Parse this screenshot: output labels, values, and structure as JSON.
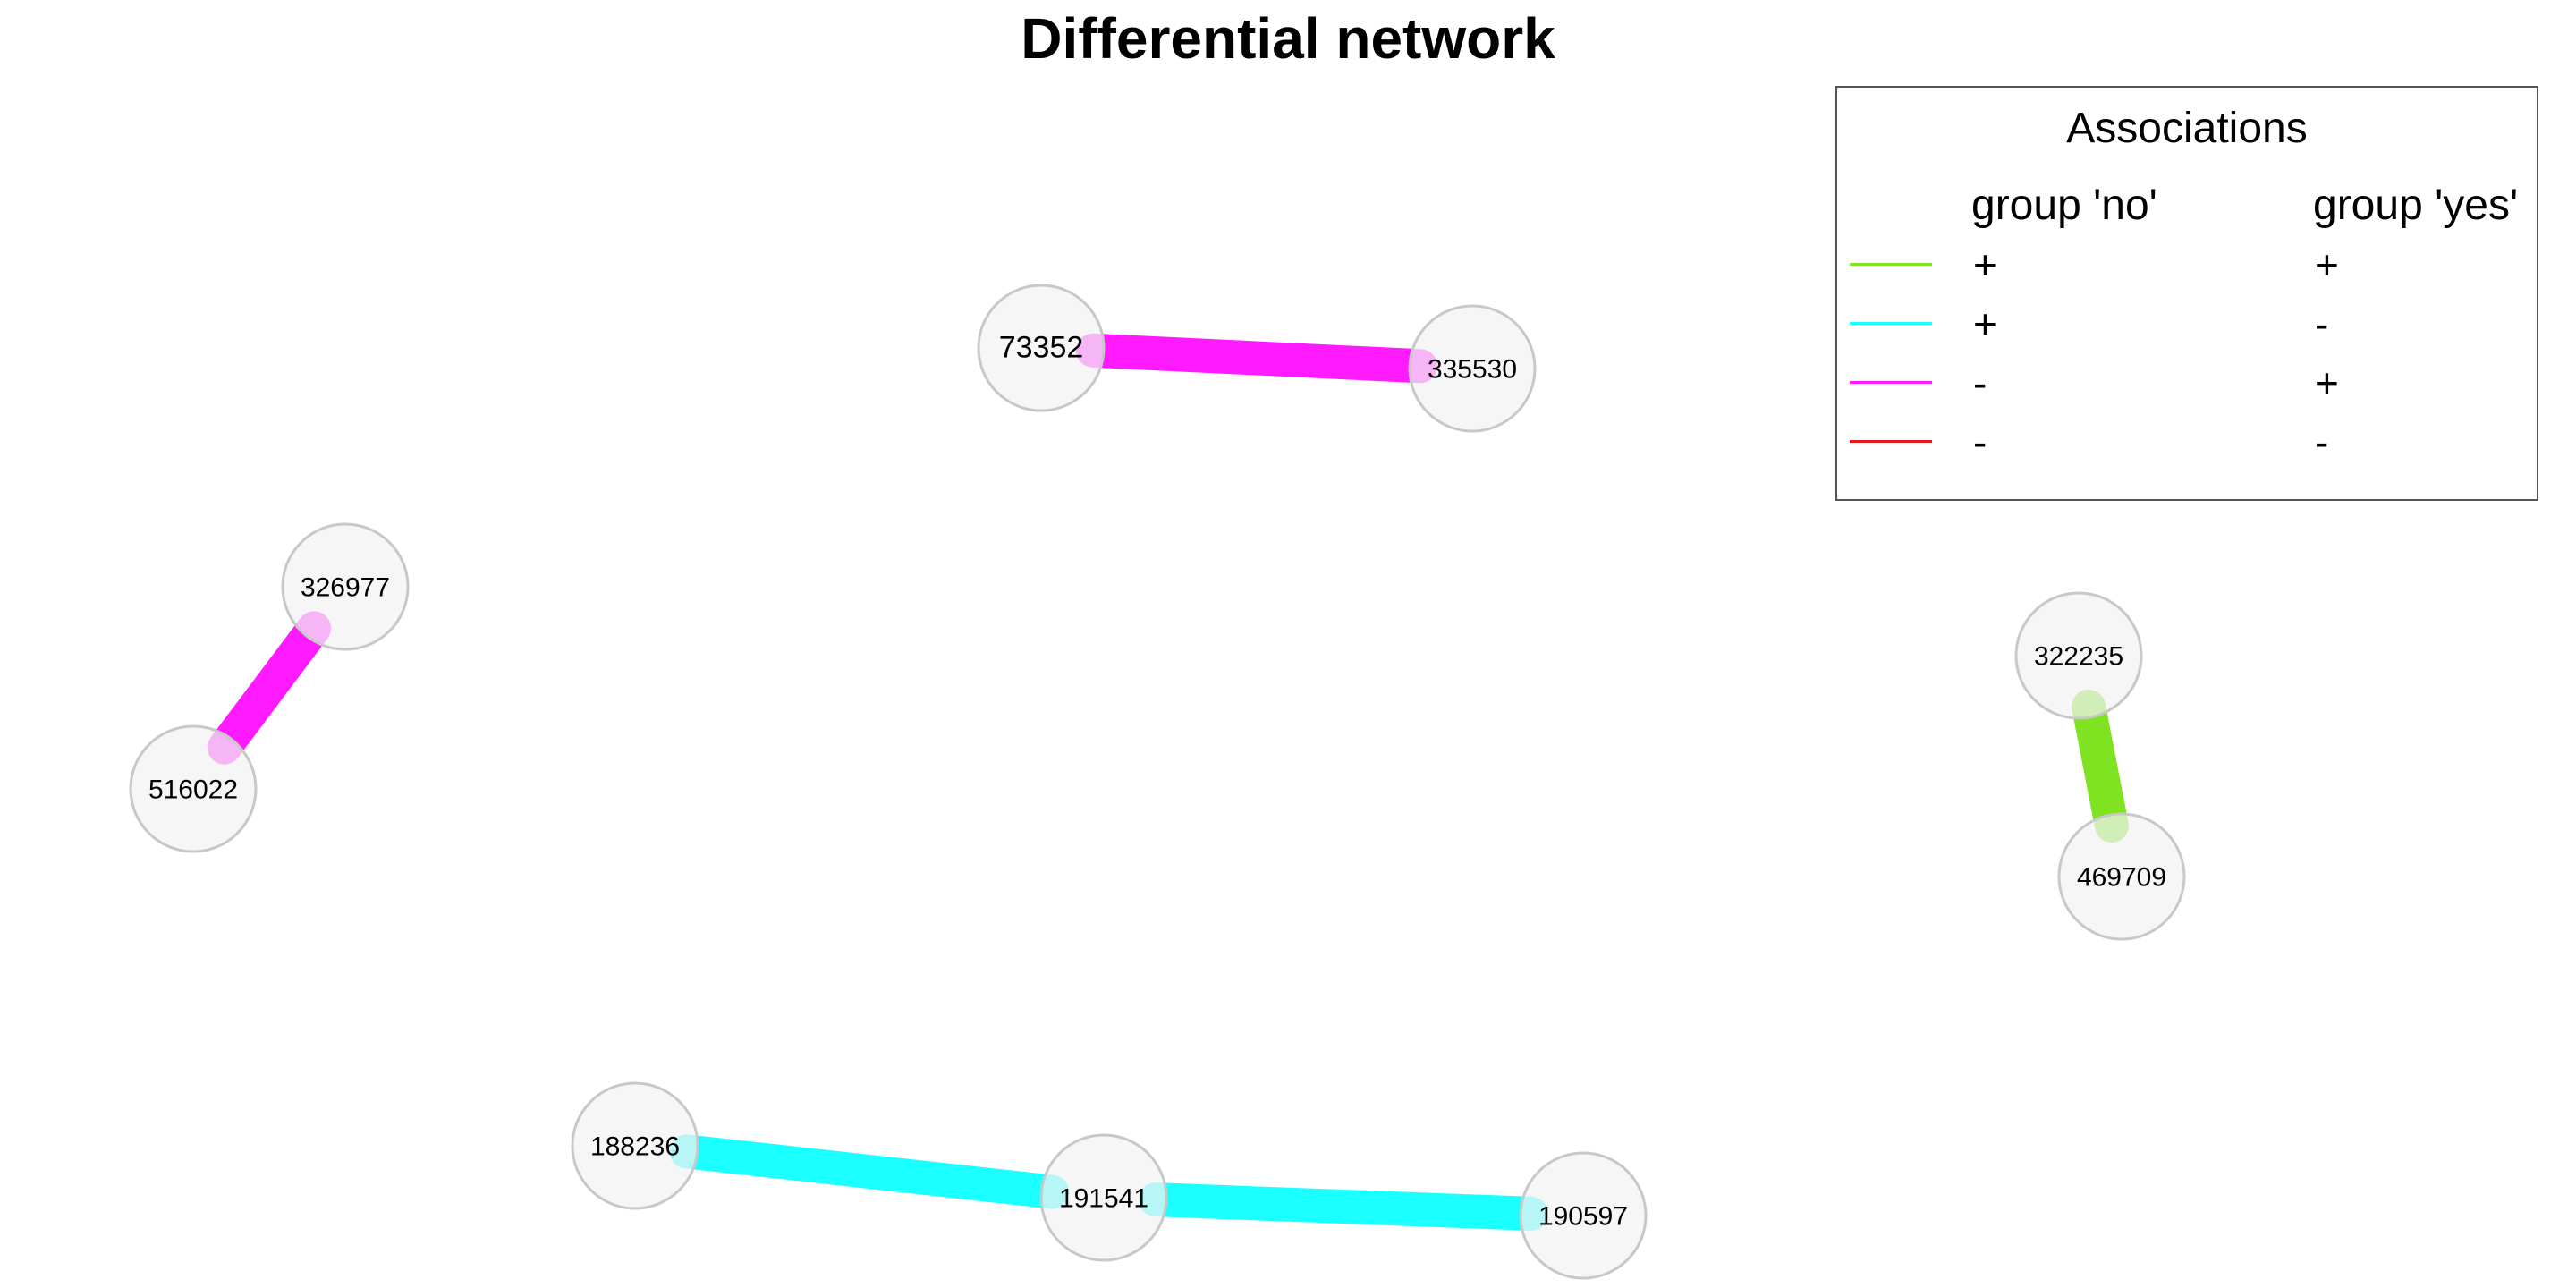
{
  "title": "Differential network",
  "legend": {
    "title": "Associations",
    "col_no": "group 'no'",
    "col_yes": "group 'yes'",
    "rows": [
      {
        "color": "#7fe321",
        "sign_no": "+",
        "sign_yes": "+"
      },
      {
        "color": "#1affff",
        "sign_no": "+",
        "sign_yes": "-"
      },
      {
        "color": "#ff1aff",
        "sign_no": "-",
        "sign_yes": "+"
      },
      {
        "color": "#e31a1c",
        "sign_no": "-",
        "sign_yes": "-"
      }
    ]
  },
  "network": {
    "nodes": [
      {
        "id": "73352"
      },
      {
        "id": "335530"
      },
      {
        "id": "326977"
      },
      {
        "id": "516022"
      },
      {
        "id": "322235"
      },
      {
        "id": "469709"
      },
      {
        "id": "188236"
      },
      {
        "id": "191541"
      },
      {
        "id": "190597"
      }
    ],
    "edges": [
      {
        "from": "73352",
        "to": "335530",
        "group_no": "-",
        "group_yes": "+",
        "color": "#ff1aff"
      },
      {
        "from": "326977",
        "to": "516022",
        "group_no": "-",
        "group_yes": "+",
        "color": "#ff1aff"
      },
      {
        "from": "322235",
        "to": "469709",
        "group_no": "+",
        "group_yes": "+",
        "color": "#7fe321"
      },
      {
        "from": "188236",
        "to": "191541",
        "group_no": "+",
        "group_yes": "-",
        "color": "#1affff"
      },
      {
        "from": "191541",
        "to": "190597",
        "group_no": "+",
        "group_yes": "-",
        "color": "#1affff"
      }
    ],
    "node_fill": "#f2f2f2",
    "node_stroke": "#c8c8c8"
  }
}
